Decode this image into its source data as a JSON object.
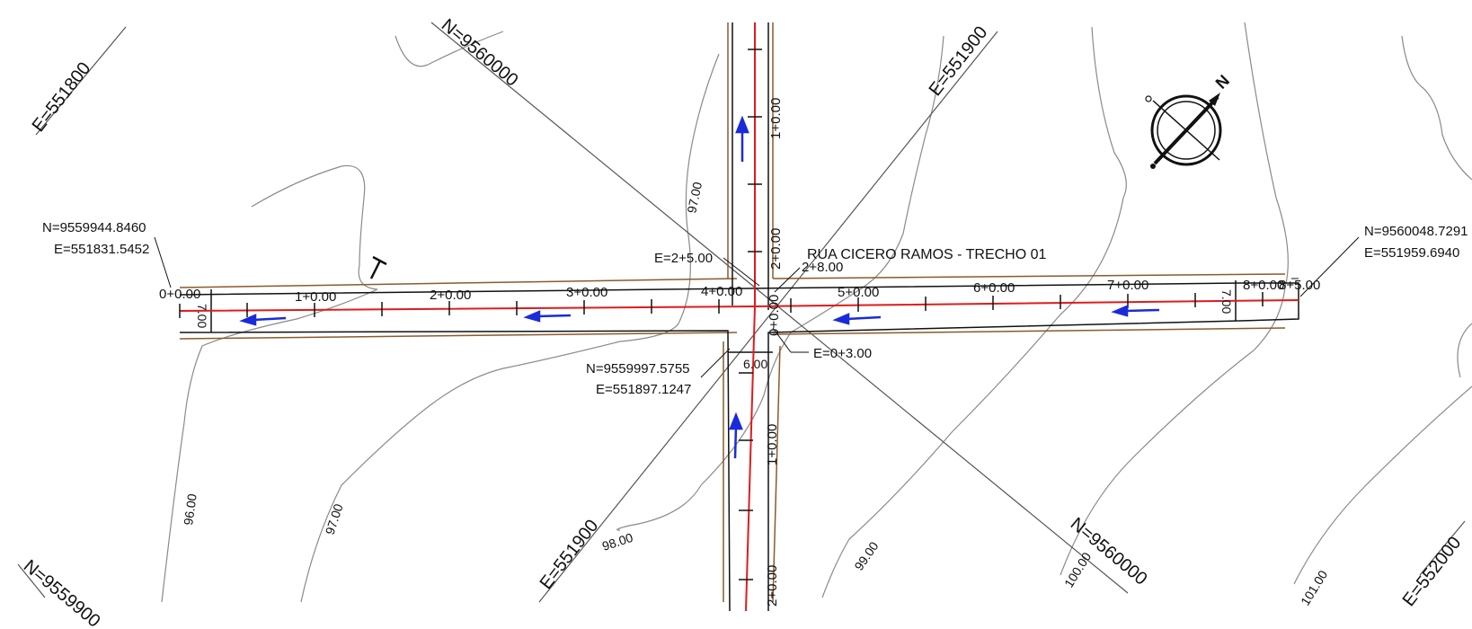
{
  "title": "RUA CICERO RAMOS - TRECHO 01",
  "grid": {
    "e551800": "E=551800",
    "n9560000_top": "N=9560000",
    "e551900_top": "E=551900",
    "e551900_bottom": "E=551900",
    "n9560000_bottom": "N=9560000",
    "n9559900": "N=9559900",
    "e552000": "E=552000"
  },
  "coords": {
    "left_n": "N=9559944.8460",
    "left_e": "E=551831.5452",
    "center_n": "N=9559997.5755",
    "center_e": "E=551897.1247",
    "right_n": "N=9560048.7291",
    "right_e": "E=551959.6940"
  },
  "stations_h": [
    "0+0.00",
    "1+0.00",
    "2+0.00",
    "3+0.00",
    "4+0.00",
    "5+0.00",
    "6+0.00",
    "7+0.00",
    "8+0.00",
    "8+5.00"
  ],
  "stations_v": {
    "top_1": "1+0.00",
    "top_2": "2+0.00",
    "center_0": "0+0.00",
    "bottom_1": "1+0.00",
    "bottom_2": "2+0.00"
  },
  "intersection": {
    "e_left": "E=2+5.00",
    "e_right": "2+8.00",
    "e_bottom": "E=0+3.00"
  },
  "widths": {
    "left": "7.00",
    "right": "7.00",
    "bottom": "6.00"
  },
  "contours": [
    "96.00",
    "97.00",
    "97.00",
    "98.00",
    "99.00",
    "100.00",
    "101.00"
  ],
  "north_label": "N",
  "colors": {
    "axis": "#e01b1b",
    "edge": "#111111",
    "border": "#8b5a2b",
    "arrow": "#1a2bd9",
    "contour": "#777777",
    "grid": "#555555"
  }
}
